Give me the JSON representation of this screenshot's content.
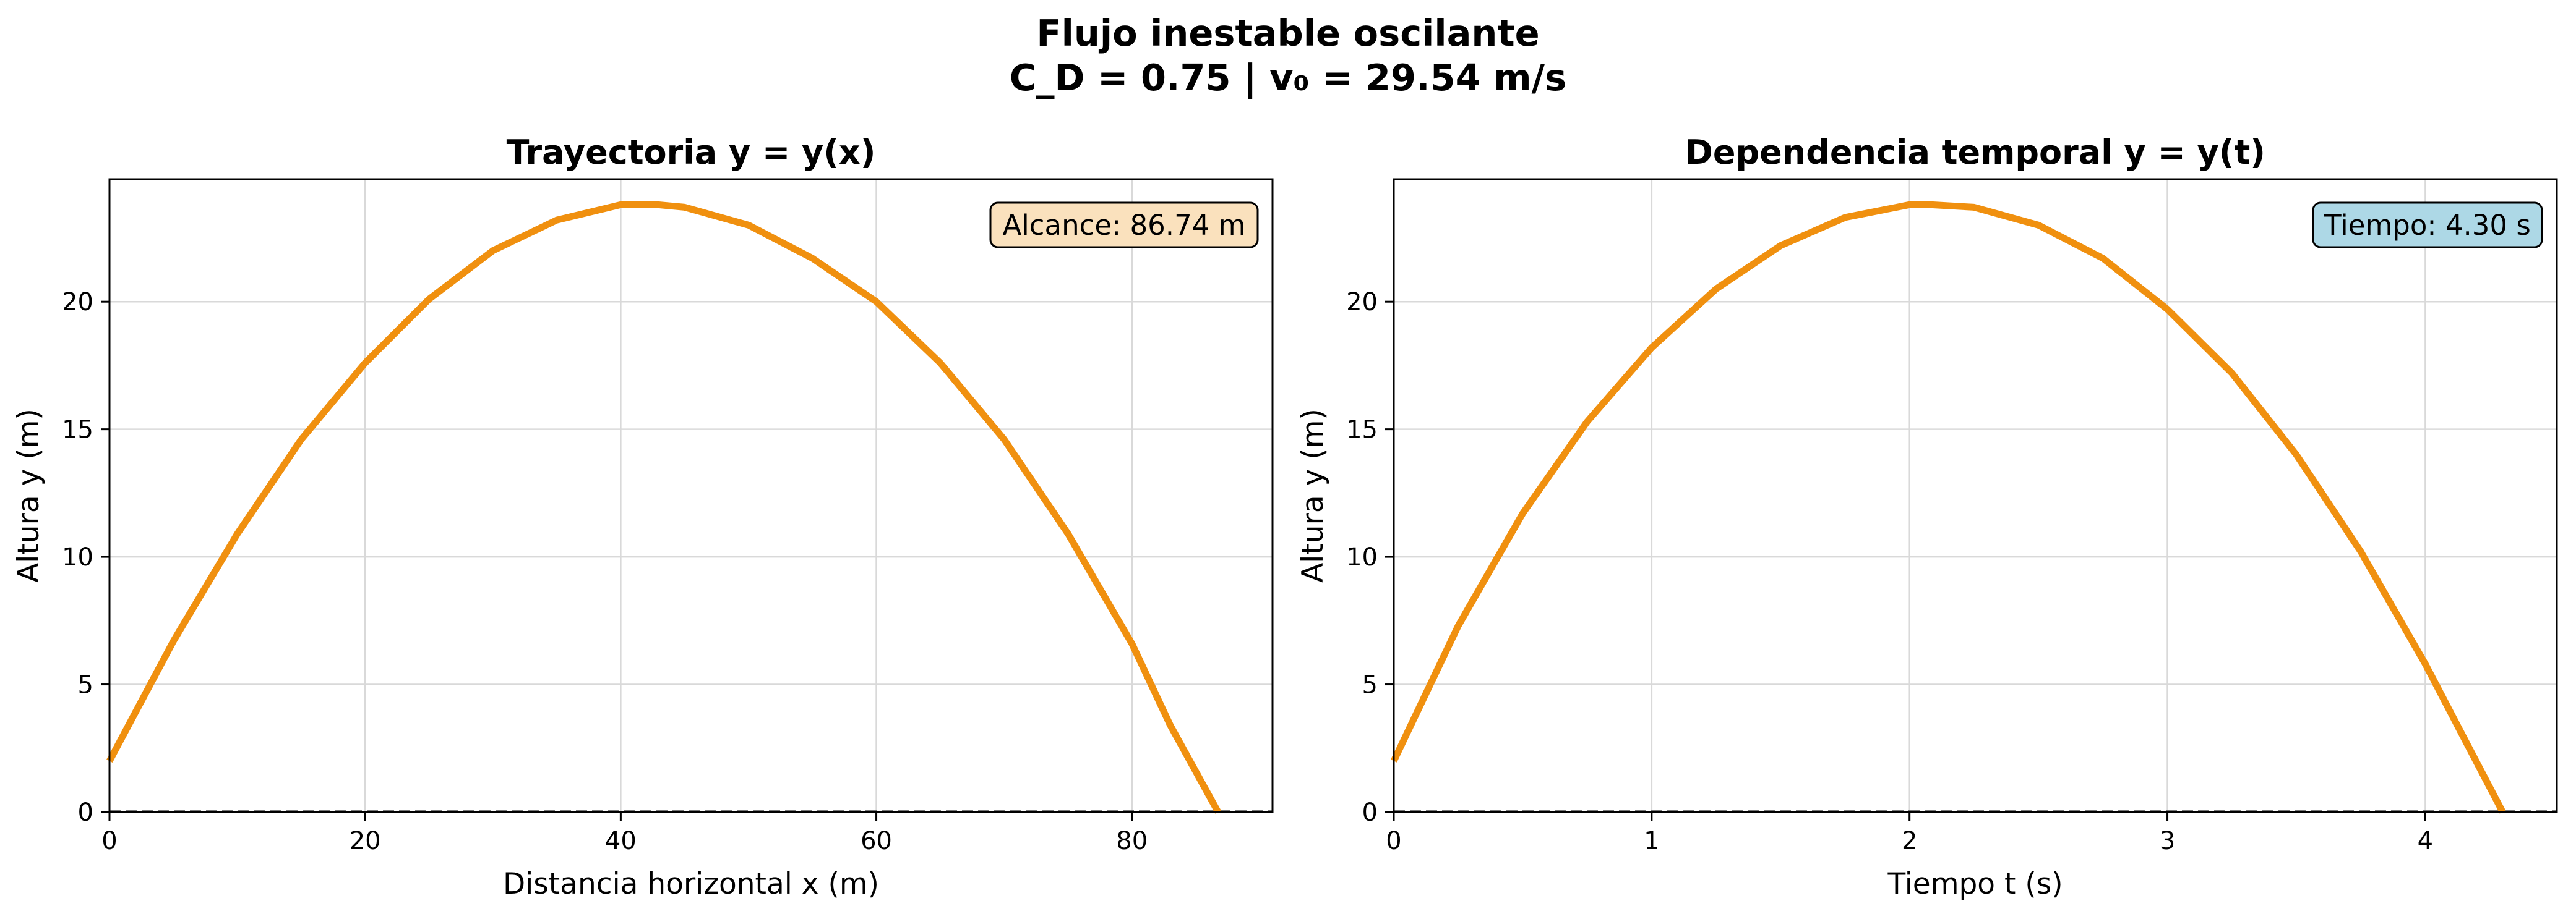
{
  "figure": {
    "title_line1": "Flujo inestable oscilante",
    "title_line2": "C_D = 0.75 | v₀ = 29.54 m/s"
  },
  "colors": {
    "curve": "#F0900F",
    "grid": "#d9d9d9",
    "baseline": "#555555",
    "annotation_left_fill": "#FAE1BD",
    "annotation_right_fill": "#ADD8E6"
  },
  "chart_data": [
    {
      "type": "line",
      "title": "Trayectoria y = y(x)",
      "xlabel": "Distancia horizontal x (m)",
      "ylabel": "Altura y (m)",
      "xlim": [
        0,
        91
      ],
      "ylim": [
        0,
        24.8
      ],
      "xticks": [
        0,
        20,
        40,
        60,
        80
      ],
      "yticks": [
        0,
        5,
        10,
        15,
        20
      ],
      "grid": true,
      "baseline_y": 0,
      "annotation": {
        "text": "Alcance: 86.74 m",
        "position": "top-right"
      },
      "series": [
        {
          "color": "#F0900F",
          "x": [
            0,
            5,
            10,
            15,
            20,
            25,
            30,
            35,
            40,
            42.9,
            45,
            50,
            55,
            60,
            65,
            70,
            75,
            80,
            83,
            86.74
          ],
          "y": [
            2.0,
            6.7,
            10.9,
            14.6,
            17.6,
            20.1,
            22.0,
            23.2,
            23.8,
            23.8,
            23.7,
            23.0,
            21.7,
            20.0,
            17.6,
            14.6,
            10.9,
            6.6,
            3.4,
            0
          ]
        }
      ]
    },
    {
      "type": "line",
      "title": "Dependencia temporal y = y(t)",
      "xlabel": "Tiempo t (s)",
      "ylabel": "Altura y (m)",
      "xlim": [
        0,
        4.51
      ],
      "ylim": [
        0,
        24.8
      ],
      "xticks": [
        0,
        1,
        2,
        3,
        4
      ],
      "yticks": [
        0,
        5,
        10,
        15,
        20
      ],
      "grid": true,
      "baseline_y": 0,
      "annotation": {
        "text": "Tiempo: 4.30 s",
        "position": "top-right"
      },
      "series": [
        {
          "color": "#F0900F",
          "t": [
            0,
            0.25,
            0.5,
            0.75,
            1.0,
            1.25,
            1.5,
            1.75,
            2.0,
            2.08,
            2.25,
            2.5,
            2.75,
            3.0,
            3.25,
            3.5,
            3.75,
            4.0,
            4.15,
            4.3
          ],
          "y": [
            2.0,
            7.3,
            11.7,
            15.3,
            18.2,
            20.5,
            22.2,
            23.3,
            23.8,
            23.8,
            23.7,
            23.0,
            21.7,
            19.7,
            17.2,
            14.0,
            10.2,
            5.8,
            2.9,
            0
          ]
        }
      ]
    }
  ]
}
